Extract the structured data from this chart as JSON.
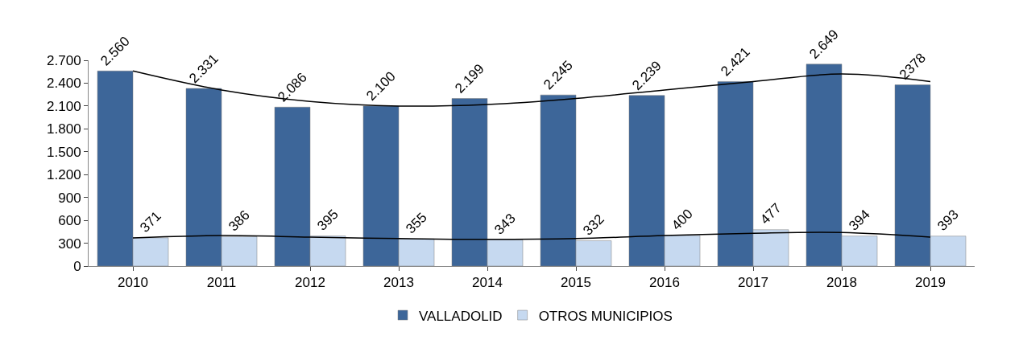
{
  "chart_data": {
    "type": "bar",
    "categories": [
      "2010",
      "2011",
      "2012",
      "2013",
      "2014",
      "2015",
      "2016",
      "2017",
      "2018",
      "2019"
    ],
    "series": [
      {
        "name": "VALLADOLID",
        "color": "#3d6699",
        "values": [
          2560,
          2331,
          2086,
          2100,
          2199,
          2245,
          2239,
          2421,
          2649,
          2378
        ],
        "value_labels": [
          "2.560",
          "2.331",
          "2.086",
          "2.100",
          "2.199",
          "2.245",
          "2.239",
          "2.421",
          "2.649",
          "2378"
        ]
      },
      {
        "name": "OTROS MUNICIPIOS",
        "color": "#c6d9f0",
        "values": [
          371,
          386,
          395,
          355,
          343,
          332,
          400,
          477,
          394,
          393
        ],
        "value_labels": [
          "371",
          "386",
          "395",
          "355",
          "343",
          "332",
          "400",
          "477",
          "394",
          "393"
        ]
      },
      {
        "type": "line",
        "color": "#000000",
        "values": [
          2560,
          2310,
          2160,
          2100,
          2120,
          2200,
          2310,
          2420,
          2520,
          2420
        ]
      },
      {
        "type": "line",
        "color": "#000000",
        "values": [
          370,
          400,
          380,
          360,
          350,
          360,
          400,
          430,
          440,
          380
        ]
      }
    ],
    "ylim": [
      0,
      2700
    ],
    "yticks": [
      0,
      300,
      600,
      900,
      {
        "value": 1200,
        "label": "1.200"
      },
      {
        "value": 1500,
        "label": "1.500"
      },
      {
        "value": 1800,
        "label": "1.800"
      },
      {
        "value": 2100,
        "label": "2.100"
      },
      {
        "value": 2400,
        "label": "2.400"
      },
      {
        "value": 2700,
        "label": "2.700"
      }
    ],
    "legend": "bottom"
  }
}
